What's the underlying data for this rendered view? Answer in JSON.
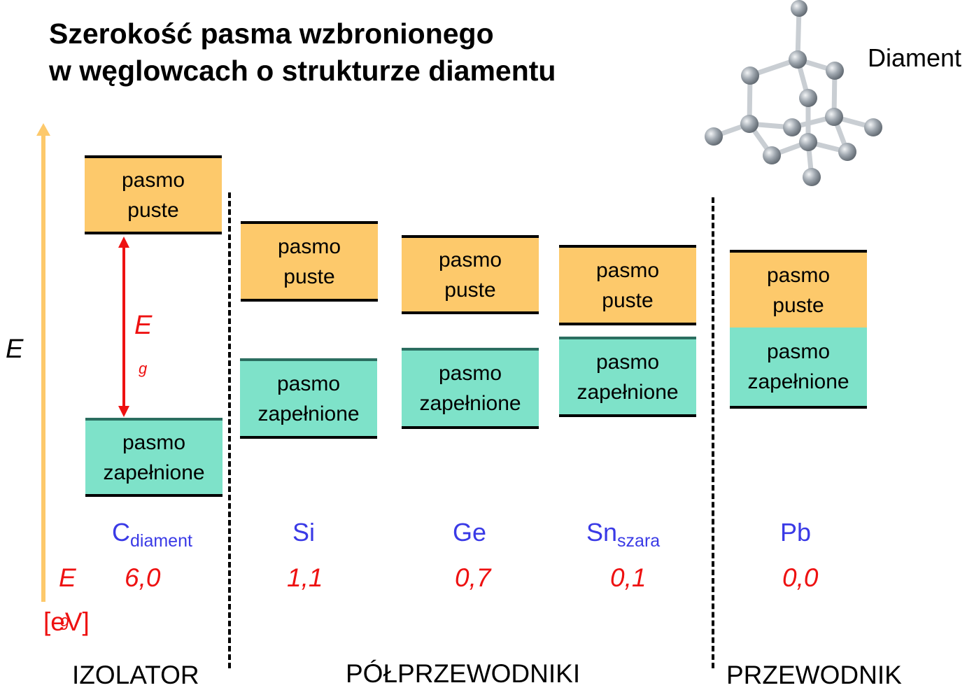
{
  "title": {
    "line1": "Szerokość pasma wzbronionego",
    "line2": "w węglowcach o strukturze diamentu"
  },
  "axis": {
    "label": "E"
  },
  "diamond": {
    "label": "Diament"
  },
  "band_labels": {
    "empty_1": "pasmo",
    "empty_2": "puste",
    "filled_1": "pasmo",
    "filled_2": "zapełnione"
  },
  "gap": {
    "symbol": "E",
    "subscript": "g"
  },
  "energy_row": {
    "symbol": "E",
    "unit": "[eV]",
    "unit_overlap": "g"
  },
  "elements": [
    {
      "symbol": "C",
      "subscript": "diament",
      "gap_value": "6,0"
    },
    {
      "symbol": "Si",
      "subscript": "",
      "gap_value": "1,1"
    },
    {
      "symbol": "Ge",
      "subscript": "",
      "gap_value": "0,7"
    },
    {
      "symbol": "Sn",
      "subscript": "szara",
      "gap_value": "0,1"
    },
    {
      "symbol": "Pb",
      "subscript": "",
      "gap_value": "0,0"
    }
  ],
  "categories": {
    "insulator": "IZOLATOR",
    "semiconductors": "PÓŁPRZEWODNIKI",
    "conductor": "PRZEWODNIK"
  },
  "colors": {
    "empty_band": "#fdc96b",
    "filled_band": "#7ee2c9",
    "element_text": "#3a3ae6",
    "value_text": "#ee1111",
    "axis": "#fdc96b"
  }
}
